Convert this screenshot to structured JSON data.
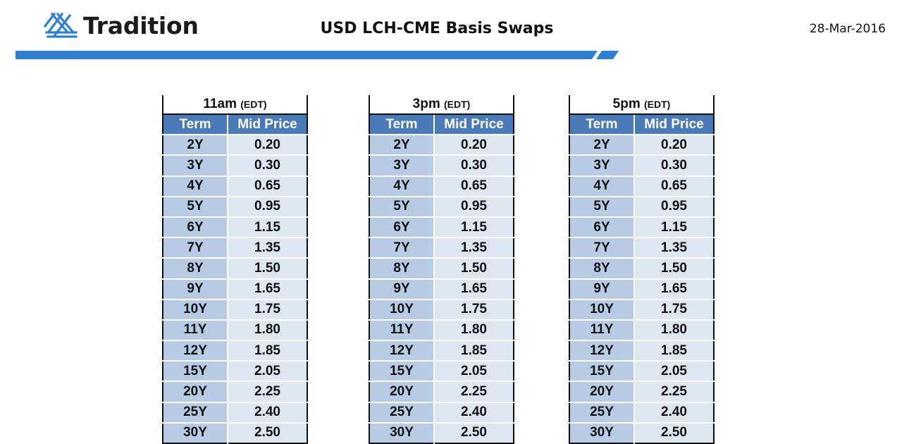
{
  "header": {
    "logo_text": "Tradition",
    "logo_icon": "tradition-lattice-icon",
    "title": "USD LCH-CME Basis Swaps",
    "date": "28-Mar-2016"
  },
  "colors": {
    "brand_blue": "#2f7fd0",
    "header_blue": "#4b7ab8",
    "term_cell": "#b8cbe4",
    "price_cell": "#dde7f1"
  },
  "columns": {
    "term": "Term",
    "mid_price": "Mid Price"
  },
  "sessions": [
    {
      "time": "11am",
      "tz": "(EDT)",
      "rows": [
        {
          "term": "2Y",
          "price": "0.20"
        },
        {
          "term": "3Y",
          "price": "0.30"
        },
        {
          "term": "4Y",
          "price": "0.65"
        },
        {
          "term": "5Y",
          "price": "0.95"
        },
        {
          "term": "6Y",
          "price": "1.15"
        },
        {
          "term": "7Y",
          "price": "1.35"
        },
        {
          "term": "8Y",
          "price": "1.50"
        },
        {
          "term": "9Y",
          "price": "1.65"
        },
        {
          "term": "10Y",
          "price": "1.75"
        },
        {
          "term": "11Y",
          "price": "1.80"
        },
        {
          "term": "12Y",
          "price": "1.85"
        },
        {
          "term": "15Y",
          "price": "2.05"
        },
        {
          "term": "20Y",
          "price": "2.25"
        },
        {
          "term": "25Y",
          "price": "2.40"
        },
        {
          "term": "30Y",
          "price": "2.50"
        }
      ]
    },
    {
      "time": "3pm",
      "tz": "(EDT)",
      "rows": [
        {
          "term": "2Y",
          "price": "0.20"
        },
        {
          "term": "3Y",
          "price": "0.30"
        },
        {
          "term": "4Y",
          "price": "0.65"
        },
        {
          "term": "5Y",
          "price": "0.95"
        },
        {
          "term": "6Y",
          "price": "1.15"
        },
        {
          "term": "7Y",
          "price": "1.35"
        },
        {
          "term": "8Y",
          "price": "1.50"
        },
        {
          "term": "9Y",
          "price": "1.65"
        },
        {
          "term": "10Y",
          "price": "1.75"
        },
        {
          "term": "11Y",
          "price": "1.80"
        },
        {
          "term": "12Y",
          "price": "1.85"
        },
        {
          "term": "15Y",
          "price": "2.05"
        },
        {
          "term": "20Y",
          "price": "2.25"
        },
        {
          "term": "25Y",
          "price": "2.40"
        },
        {
          "term": "30Y",
          "price": "2.50"
        }
      ]
    },
    {
      "time": "5pm",
      "tz": "(EDT)",
      "rows": [
        {
          "term": "2Y",
          "price": "0.20"
        },
        {
          "term": "3Y",
          "price": "0.30"
        },
        {
          "term": "4Y",
          "price": "0.65"
        },
        {
          "term": "5Y",
          "price": "0.95"
        },
        {
          "term": "6Y",
          "price": "1.15"
        },
        {
          "term": "7Y",
          "price": "1.35"
        },
        {
          "term": "8Y",
          "price": "1.50"
        },
        {
          "term": "9Y",
          "price": "1.65"
        },
        {
          "term": "10Y",
          "price": "1.75"
        },
        {
          "term": "11Y",
          "price": "1.80"
        },
        {
          "term": "12Y",
          "price": "1.85"
        },
        {
          "term": "15Y",
          "price": "2.05"
        },
        {
          "term": "20Y",
          "price": "2.25"
        },
        {
          "term": "25Y",
          "price": "2.40"
        },
        {
          "term": "30Y",
          "price": "2.50"
        }
      ]
    }
  ]
}
